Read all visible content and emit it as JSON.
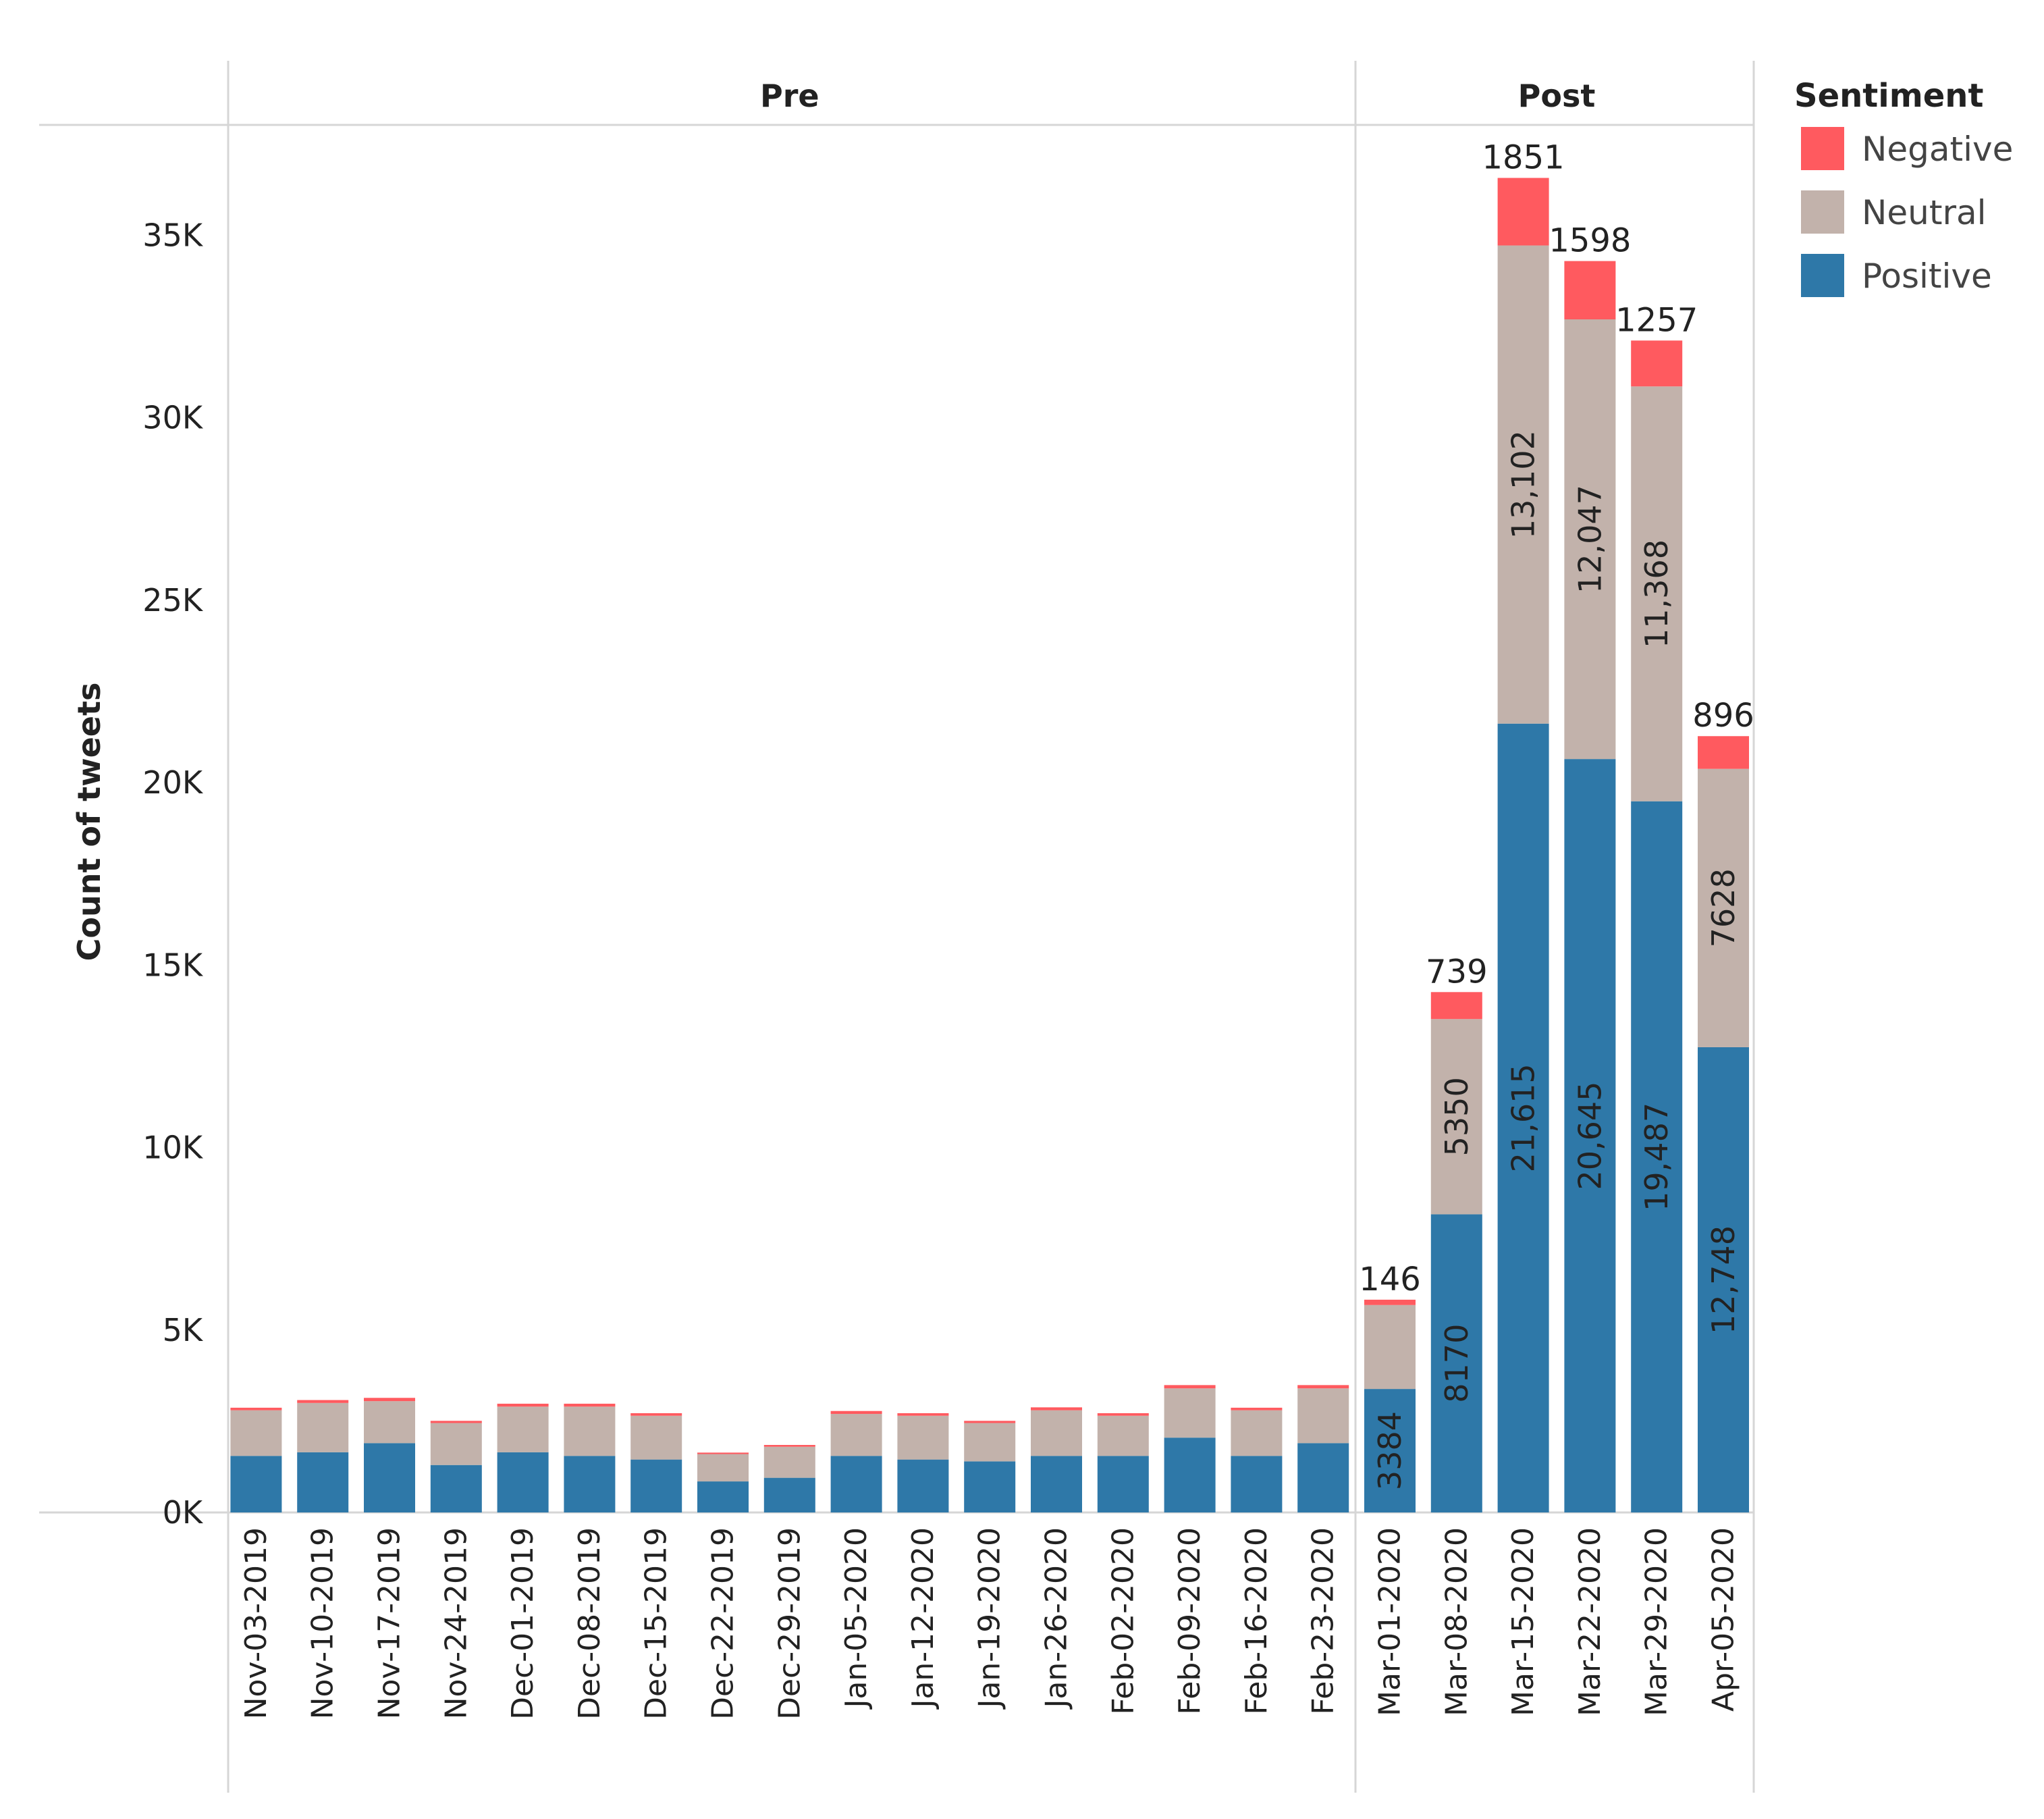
{
  "chart_data": {
    "type": "bar",
    "stacked": true,
    "ylabel": "Count of tweets",
    "yticks": [
      "0K",
      "5K",
      "10K",
      "15K",
      "20K",
      "25K",
      "30K",
      "35K"
    ],
    "ylim": [
      0,
      38000
    ],
    "panels": [
      {
        "name": "Pre",
        "start": 0,
        "end": 16
      },
      {
        "name": "Post",
        "start": 17,
        "end": 22
      }
    ],
    "legend": {
      "title": "Sentiment",
      "position": "top-right",
      "items": [
        {
          "name": "Negative",
          "color": "#ff5a5f"
        },
        {
          "name": "Neutral",
          "color": "#c2b2ab"
        },
        {
          "name": "Positive",
          "color": "#2e78a8"
        }
      ]
    },
    "categories": [
      "Nov-03-2019",
      "Nov-10-2019",
      "Nov-17-2019",
      "Nov-24-2019",
      "Dec-01-2019",
      "Dec-08-2019",
      "Dec-15-2019",
      "Dec-22-2019",
      "Dec-29-2019",
      "Jan-05-2020",
      "Jan-12-2020",
      "Jan-19-2020",
      "Jan-26-2020",
      "Feb-02-2020",
      "Feb-09-2020",
      "Feb-16-2020",
      "Feb-23-2020",
      "Mar-01-2020",
      "Mar-08-2020",
      "Mar-15-2020",
      "Mar-22-2020",
      "Mar-29-2020",
      "Apr-05-2020"
    ],
    "series": [
      {
        "name": "Positive",
        "color": "#2e78a8",
        "values": [
          1550,
          1650,
          1900,
          1300,
          1650,
          1550,
          1450,
          850,
          950,
          1550,
          1450,
          1400,
          1550,
          1550,
          2050,
          1550,
          1900,
          3384,
          8170,
          21615,
          20645,
          19487,
          12748
        ],
        "labels": [
          "",
          "",
          "",
          "",
          "",
          "",
          "",
          "",
          "",
          "",
          "",
          "",
          "",
          "",
          "",
          "",
          "",
          "3384",
          "8170",
          "21,615",
          "20,645",
          "19,487",
          "12,748"
        ]
      },
      {
        "name": "Neutral",
        "color": "#c2b2ab",
        "values": [
          1250,
          1350,
          1150,
          1150,
          1250,
          1350,
          1200,
          750,
          850,
          1150,
          1200,
          1050,
          1250,
          1100,
          1350,
          1250,
          1500,
          2300,
          5350,
          13102,
          12047,
          11368,
          7628
        ],
        "labels": [
          "",
          "",
          "",
          "",
          "",
          "",
          "",
          "",
          "",
          "",
          "",
          "",
          "",
          "",
          "",
          "",
          "",
          "",
          "5350",
          "13,102",
          "12,047",
          "11,368",
          "7628"
        ]
      },
      {
        "name": "Negative",
        "color": "#ff5a5f",
        "values": [
          70,
          80,
          90,
          60,
          80,
          80,
          70,
          40,
          50,
          80,
          70,
          60,
          80,
          70,
          90,
          70,
          90,
          146,
          739,
          1851,
          1598,
          1257,
          896
        ],
        "labels": [
          "",
          "",
          "",
          "",
          "",
          "",
          "",
          "",
          "",
          "",
          "",
          "",
          "",
          "",
          "",
          "",
          "",
          "146",
          "739",
          "1851",
          "1598",
          "1257",
          "896"
        ]
      }
    ]
  }
}
